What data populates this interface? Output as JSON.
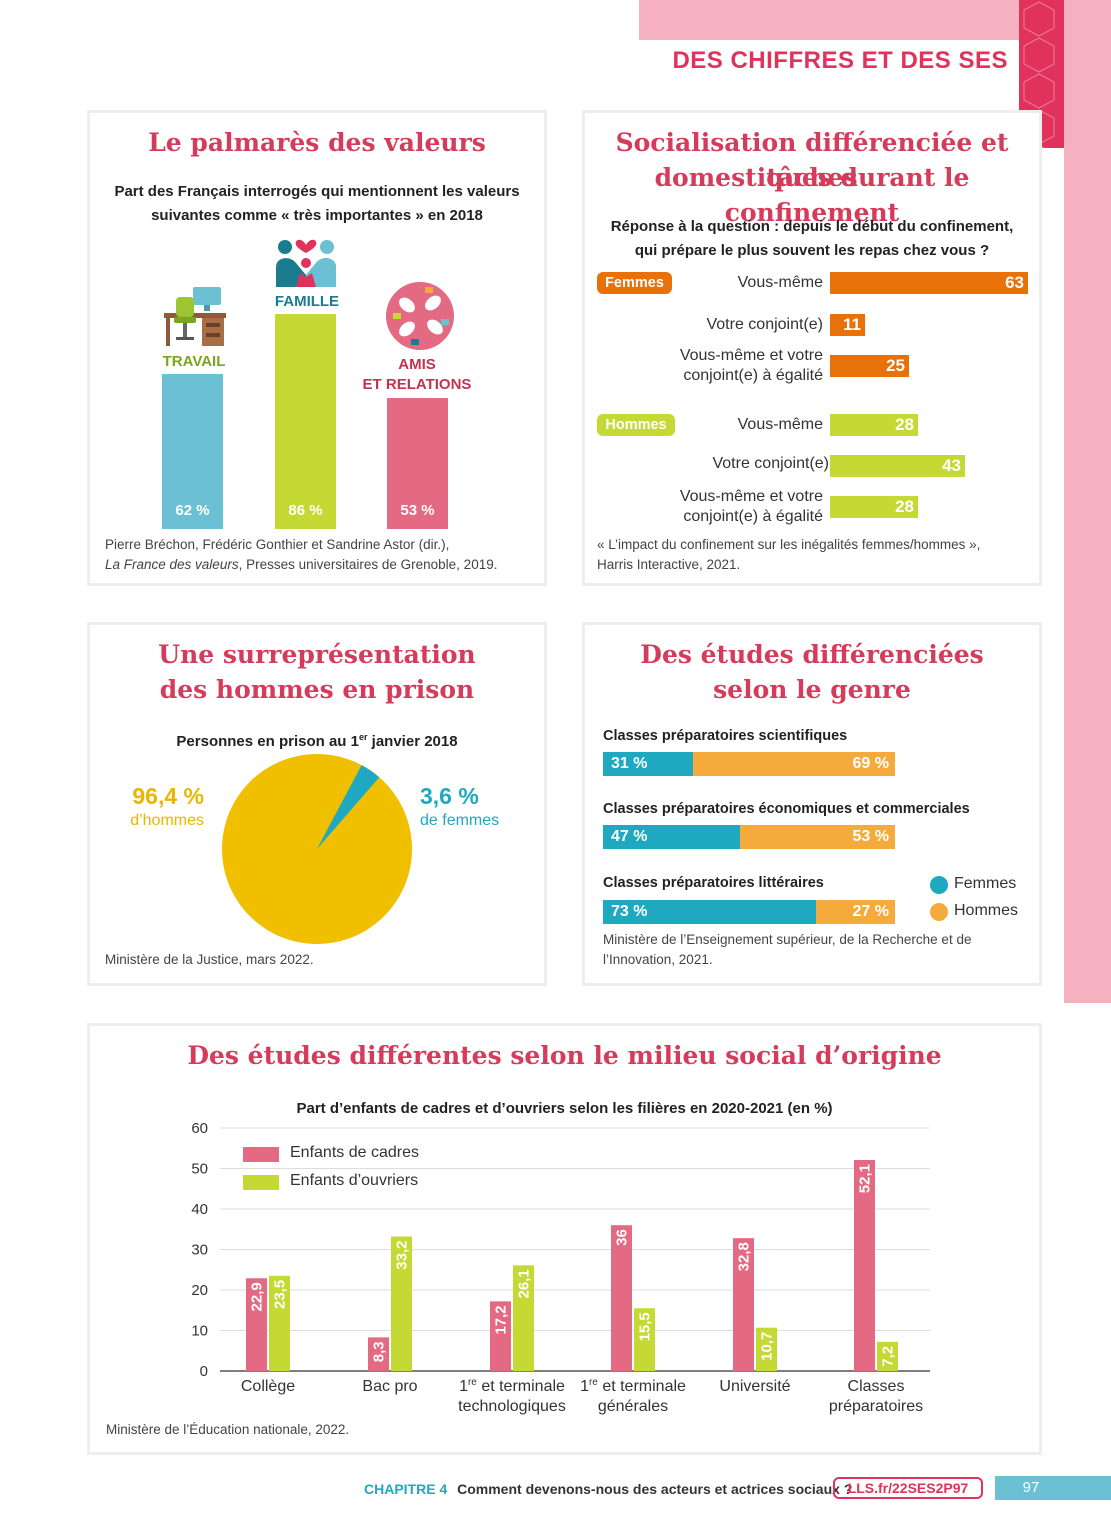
{
  "header": {
    "title": "DES CHIFFRES ET DES SES"
  },
  "valeurs": {
    "title": "Le palmarès des valeurs",
    "subtitle_l1": "Part des Français interrogés qui mentionnent les valeurs",
    "subtitle_l2": "suivantes comme « très importantes » en 2018",
    "bars": [
      {
        "label": "TRAVAIL",
        "value": 62,
        "value_label": "62 %",
        "color": "#6cc0d3",
        "label_color": "#7aa51f"
      },
      {
        "label": "FAMILLE",
        "value": 86,
        "value_label": "86 %",
        "color": "#c5d934",
        "label_color": "#1b7c8f"
      },
      {
        "label_l1": "AMIS",
        "label_l2": "ET RELATIONS",
        "value": 53,
        "value_label": "53 %",
        "color": "#e36a82",
        "label_color": "#c2334f"
      }
    ],
    "source_l1": "Pierre Bréchon, Frédéric Gonthier et Sandrine Astor (dir.),",
    "source_l2_italic": "La France des valeurs",
    "source_l2_rest": ", Presses universitaires de Grenoble, 2019."
  },
  "socialisation": {
    "title_l1": "Socialisation différenciée et tâches",
    "title_l2": "domestiques durant le confinement",
    "question_l1": "Réponse à la question : depuis le début du confinement,",
    "question_l2": "qui prépare le plus souvent les repas chez vous ?",
    "groups": [
      {
        "name": "Femmes",
        "color": "#e8710a",
        "rows": [
          {
            "label": "Vous-même",
            "value": 63
          },
          {
            "label": "Votre conjoint(e)",
            "value": 11
          },
          {
            "label_l1": "Vous-même et votre",
            "label_l2": "conjoint(e) à égalité",
            "value": 25
          }
        ]
      },
      {
        "name": "Hommes",
        "color": "#c5d934",
        "rows": [
          {
            "label": "Vous-même",
            "value": 28
          },
          {
            "label": "Votre conjoint(e)",
            "value": 43
          },
          {
            "label_l1": "Vous-même et votre",
            "label_l2": "conjoint(e) à égalité",
            "value": 28
          }
        ]
      }
    ],
    "source_l1": "« L’impact du confinement sur les inégalités femmes/hommes »,",
    "source_l2": "Harris Interactive, 2021."
  },
  "prison": {
    "title_l1": "Une surreprésentation",
    "title_l2": "des hommes en prison",
    "subtitle_a": "Personnes en prison au 1",
    "subtitle_sup": "er",
    "subtitle_b": " janvier 2018",
    "men_value": "96,4 %",
    "men_label": "d’hommes",
    "women_value": "3,6 %",
    "women_label": "de femmes",
    "men_share": 96.4,
    "women_share": 3.6,
    "men_color": "#f0bf00",
    "women_color": "#1fa9c1",
    "source": "Ministère de la Justice, mars 2022."
  },
  "etudes_genre": {
    "title_l1": "Des études différenciées",
    "title_l2": "selon le genre",
    "rows": [
      {
        "label": "Classes préparatoires scientifiques",
        "femmes": 31,
        "hommes": 69,
        "f_label": "31 %",
        "h_label": "69 %"
      },
      {
        "label": "Classes préparatoires économiques et commerciales",
        "femmes": 47,
        "hommes": 53,
        "f_label": "47 %",
        "h_label": "53 %"
      },
      {
        "label": "Classes préparatoires littéraires",
        "femmes": 73,
        "hommes": 27,
        "f_label": "73 %",
        "h_label": "27 %"
      }
    ],
    "legend": {
      "femmes": "Femmes",
      "hommes": "Hommes"
    },
    "colors": {
      "femmes": "#1fa9c1",
      "hommes": "#f5ab3c"
    },
    "source_l1": "Ministère de l’Enseignement supérieur, de la Recherche et de",
    "source_l2": "l’Innovation, 2021."
  },
  "chart_data": {
    "type": "bar",
    "title": "Des études différentes selon le milieu social d’origine",
    "subtitle": "Part d’enfants de cadres et d’ouvriers selon les filières en 2020-2021 (en %)",
    "categories": [
      {
        "l1": "Collège",
        "l2": ""
      },
      {
        "l1": "Bac pro",
        "l2": ""
      },
      {
        "l1": "1",
        "sup": "re",
        "l1b": " et terminale",
        "l2": "technologiques"
      },
      {
        "l1": "1",
        "sup": "re",
        "l1b": " et terminale",
        "l2": "générales"
      },
      {
        "l1": "Université",
        "l2": ""
      },
      {
        "l1": "Classes",
        "l2": "préparatoires"
      }
    ],
    "series": [
      {
        "name": "Enfants de cadres",
        "color": "#e36a82",
        "values": [
          22.9,
          8.3,
          17.2,
          36,
          32.8,
          52.1
        ],
        "labels": [
          "22,9",
          "8,3",
          "17,2",
          "36",
          "32,8",
          "52,1"
        ]
      },
      {
        "name": "Enfants d’ouvriers",
        "color": "#c5d934",
        "values": [
          23.5,
          33.2,
          26.1,
          15.5,
          10.7,
          7.2
        ],
        "labels": [
          "23,5",
          "33,2",
          "26,1",
          "15,5",
          "10,7",
          "7,2"
        ]
      }
    ],
    "yticks": [
      "0",
      "10",
      "20",
      "30",
      "40",
      "50",
      "60"
    ],
    "ylim": [
      0,
      60
    ],
    "grid": true,
    "legend": "top-left",
    "source": "Ministère de l’Éducation nationale, 2022."
  },
  "footer": {
    "chapter": "CHAPITRE 4",
    "chapter_title": "Comment devenons-nous des acteurs et actrices sociaux ?",
    "link": "LLS.fr/22SES2P97",
    "page": "97"
  }
}
